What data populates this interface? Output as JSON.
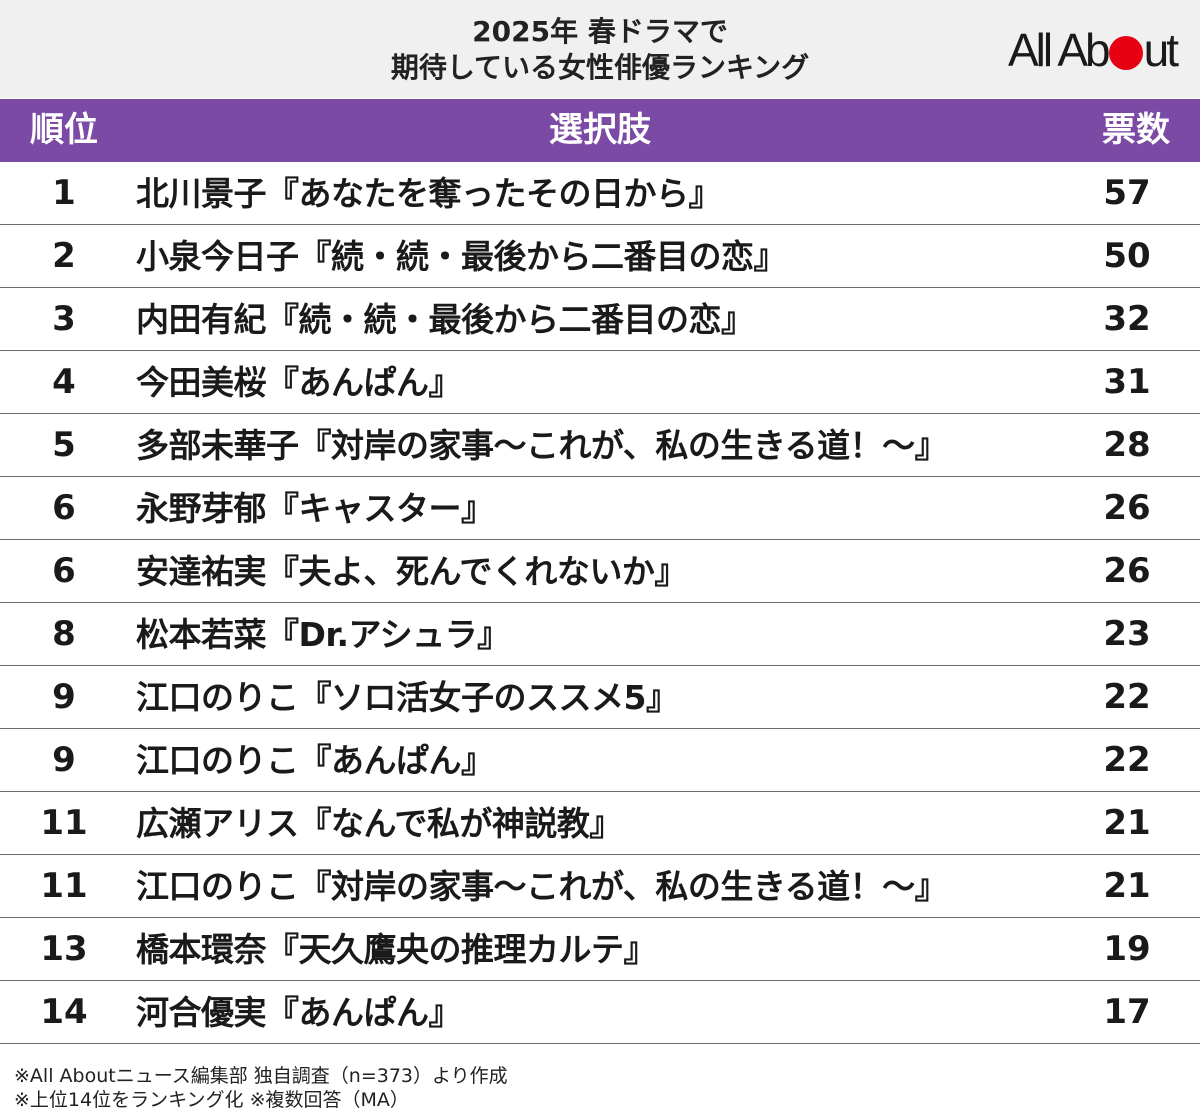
{
  "header": {
    "title_line1": "2025年 春ドラマで",
    "title_line2": "期待している女性俳優ランキング",
    "logo": {
      "text_before": "All Ab",
      "text_after": "ut",
      "dot_color": "#e60012"
    }
  },
  "table": {
    "columns": {
      "rank": "順位",
      "choice": "選択肢",
      "votes": "票数"
    },
    "header_color": "#7b4aa4",
    "rows": [
      {
        "rank": "1",
        "choice": "北川景子『あなたを奪ったその日から』",
        "votes": "57"
      },
      {
        "rank": "2",
        "choice": "小泉今日子『続・続・最後から二番目の恋』",
        "votes": "50"
      },
      {
        "rank": "3",
        "choice": "内田有紀『続・続・最後から二番目の恋』",
        "votes": "32"
      },
      {
        "rank": "4",
        "choice": "今田美桜『あんぱん』",
        "votes": "31"
      },
      {
        "rank": "5",
        "choice": "多部未華子『対岸の家事～これが、私の生きる道！～』",
        "votes": "28"
      },
      {
        "rank": "6",
        "choice": "永野芽郁『キャスター』",
        "votes": "26"
      },
      {
        "rank": "6",
        "choice": "安達祐実『夫よ、死んでくれないか』",
        "votes": "26"
      },
      {
        "rank": "8",
        "choice": "松本若菜『Dr.アシュラ』",
        "votes": "23"
      },
      {
        "rank": "9",
        "choice": "江口のりこ『ソロ活女子のススメ5』",
        "votes": "22"
      },
      {
        "rank": "9",
        "choice": "江口のりこ『あんぱん』",
        "votes": "22"
      },
      {
        "rank": "11",
        "choice": "広瀬アリス『なんで私が神説教』",
        "votes": "21"
      },
      {
        "rank": "11",
        "choice": "江口のりこ『対岸の家事～これが、私の生きる道！～』",
        "votes": "21"
      },
      {
        "rank": "13",
        "choice": "橋本環奈『天久鷹央の推理カルテ』",
        "votes": "19"
      },
      {
        "rank": "14",
        "choice": "河合優実『あんぱん』",
        "votes": "17"
      }
    ]
  },
  "footer": {
    "note1": "※All Aboutニュース編集部 独自調査（n=373）より作成",
    "note2": "※上位14位をランキング化 ※複数回答（MA）"
  }
}
